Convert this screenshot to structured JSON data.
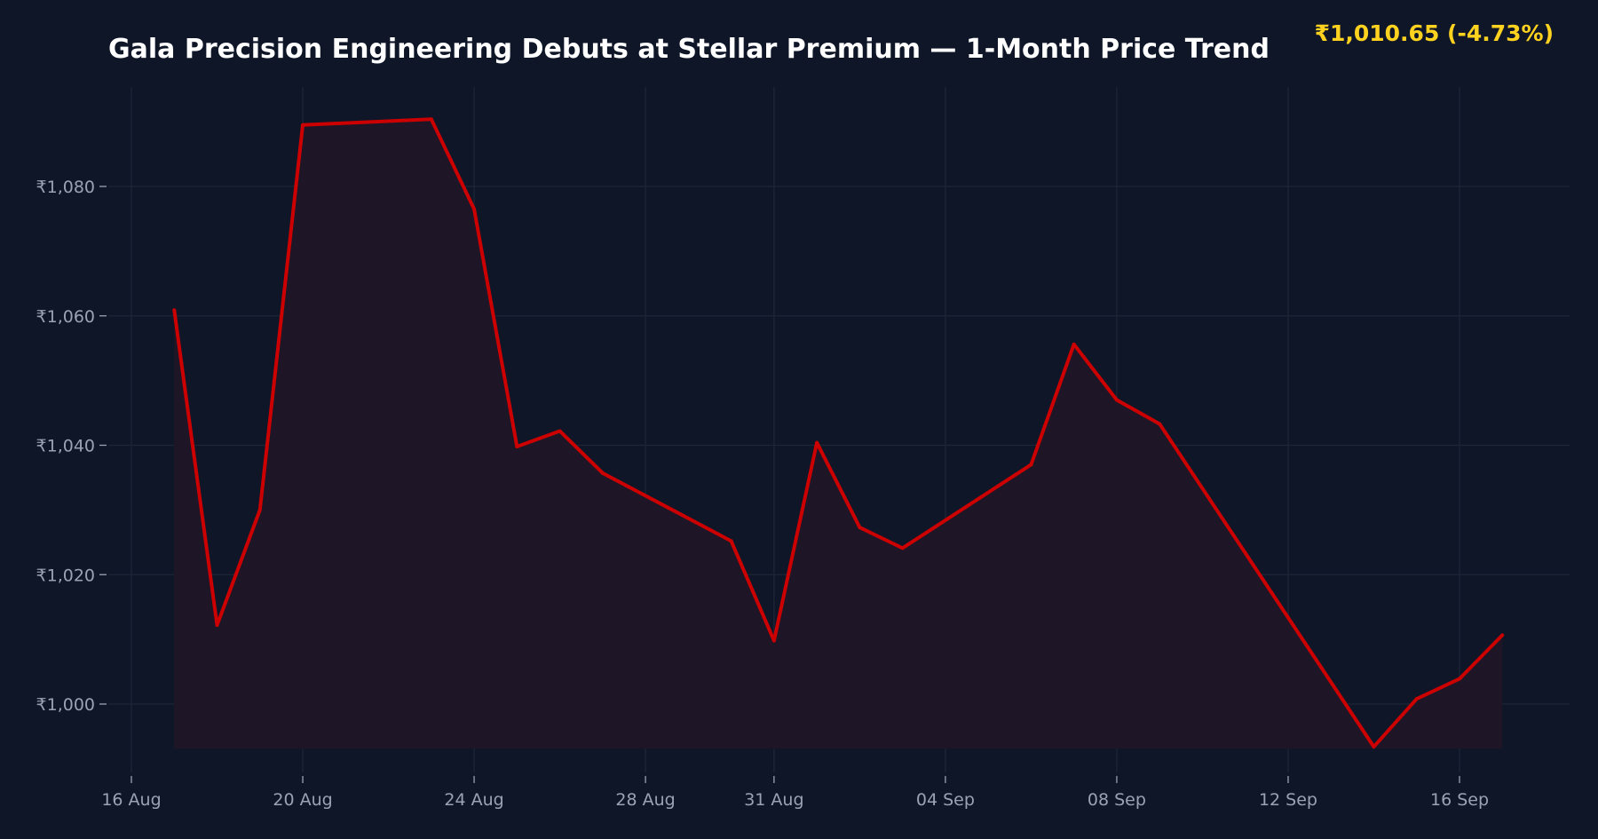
{
  "chart_data": {
    "type": "area",
    "title": "Gala Precision Engineering Debuts at Stellar Premium — 1-Month Price Trend",
    "price_label": "₹1,010.65  (-4.73%)",
    "xlabel": "",
    "ylabel": "",
    "grid": true,
    "xlim": [
      "2024-08-16",
      "2024-09-18"
    ],
    "ylim": [
      989,
      1096
    ],
    "x_ticks": [
      {
        "date": "2024-08-16",
        "label": "16 Aug"
      },
      {
        "date": "2024-08-20",
        "label": "20 Aug"
      },
      {
        "date": "2024-08-24",
        "label": "24 Aug"
      },
      {
        "date": "2024-08-28",
        "label": "28 Aug"
      },
      {
        "date": "2024-08-31",
        "label": "31 Aug"
      },
      {
        "date": "2024-09-04",
        "label": "04 Sep"
      },
      {
        "date": "2024-09-08",
        "label": "08 Sep"
      },
      {
        "date": "2024-09-12",
        "label": "12 Sep"
      },
      {
        "date": "2024-09-16",
        "label": "16 Sep"
      }
    ],
    "y_ticks": [
      {
        "value": 1000,
        "label": "₹1,000"
      },
      {
        "value": 1020,
        "label": "₹1,020"
      },
      {
        "value": 1040,
        "label": "₹1,040"
      },
      {
        "value": 1060,
        "label": "₹1,060"
      },
      {
        "value": 1080,
        "label": "₹1,080"
      }
    ],
    "area_baseline": 993.1,
    "series": [
      {
        "color": "#cc0000",
        "fill_color": "#1e1626",
        "points": [
          {
            "x": "2024-08-17",
            "y": 1060.9
          },
          {
            "x": "2024-08-18",
            "y": 1012.2
          },
          {
            "x": "2024-08-19",
            "y": 1030.0
          },
          {
            "x": "2024-08-20",
            "y": 1089.5
          },
          {
            "x": "2024-08-23",
            "y": 1090.4
          },
          {
            "x": "2024-08-24",
            "y": 1076.5
          },
          {
            "x": "2024-08-25",
            "y": 1039.8
          },
          {
            "x": "2024-08-26",
            "y": 1042.2
          },
          {
            "x": "2024-08-27",
            "y": 1035.7
          },
          {
            "x": "2024-08-30",
            "y": 1025.2
          },
          {
            "x": "2024-08-31",
            "y": 1009.8
          },
          {
            "x": "2024-09-01",
            "y": 1040.4
          },
          {
            "x": "2024-09-02",
            "y": 1027.3
          },
          {
            "x": "2024-09-03",
            "y": 1024.1
          },
          {
            "x": "2024-09-06",
            "y": 1037.0
          },
          {
            "x": "2024-09-07",
            "y": 1055.6
          },
          {
            "x": "2024-09-08",
            "y": 1047.0
          },
          {
            "x": "2024-09-09",
            "y": 1043.3
          },
          {
            "x": "2024-09-14",
            "y": 993.4
          },
          {
            "x": "2024-09-15",
            "y": 1000.8
          },
          {
            "x": "2024-09-16",
            "y": 1003.9
          },
          {
            "x": "2024-09-17",
            "y": 1010.65
          }
        ]
      }
    ]
  }
}
